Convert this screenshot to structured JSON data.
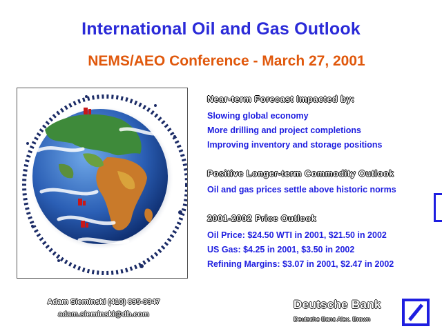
{
  "header": {
    "title": "International Oil and Gas Outlook",
    "subtitle": "NEMS/AEO Conference - March 27, 2001"
  },
  "sections": [
    {
      "heading": "Near-term Forecast Impacted by:",
      "items": [
        "Slowing global economy",
        "More drilling and project completions",
        "Improving inventory and storage positions"
      ]
    },
    {
      "heading": "Positive Longer-term Commodity Outlook",
      "items": [
        "Oil and gas prices settle above historic norms"
      ]
    },
    {
      "heading": "2001-2002 Price Outlook",
      "items": [
        "Oil Price:  $24.50 WTI in 2001, $21.50 in 2002",
        "US Gas:  $4.25 in 2001, $3.50 in 2002",
        "Refining Margins:  $3.07 in 2001, $2.47 in 2002"
      ]
    }
  ],
  "footer": {
    "contact_line": "Adam Sieminski    (410) 895-3347",
    "email": "adam.sieminski@db.com",
    "brand_name": "Deutsche Bank",
    "brand_tagline": "Deutsche Banc Alex. Brown"
  },
  "colors": {
    "title": "#2a2ad8",
    "subtitle": "#e0580c",
    "bullet_text": "#1e1ee0",
    "logo_blue": "#1e1ee0"
  },
  "icons": {
    "globe": "globe-image",
    "logo": "deutsche-bank-slash-logo"
  }
}
